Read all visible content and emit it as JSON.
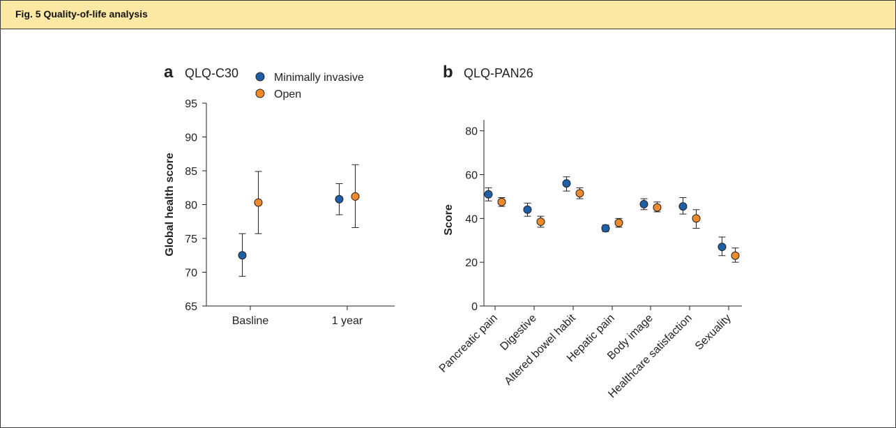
{
  "header": {
    "title": "Fig. 5 Quality-of-life analysis"
  },
  "colors": {
    "minimally_invasive": "#1f5fa8",
    "open": "#ee8a2c",
    "header_bg": "#fde9a3"
  },
  "chart_data": [
    {
      "panel": "a",
      "title": "QLQ-C30",
      "type": "scatter",
      "ylabel": "Global health score",
      "xlabel": "",
      "ylim": [
        65,
        95
      ],
      "yticks": [
        65,
        70,
        75,
        80,
        85,
        90,
        95
      ],
      "categories": [
        "Basline",
        "1 year"
      ],
      "legend_position": "top-right",
      "series": [
        {
          "name": "Minimally invasive",
          "values": [
            72.5,
            80.8
          ],
          "lower": [
            69.4,
            78.5
          ],
          "upper": [
            75.7,
            83.1
          ]
        },
        {
          "name": "Open",
          "values": [
            80.3,
            81.2
          ],
          "lower": [
            75.7,
            76.6
          ],
          "upper": [
            84.9,
            85.9
          ]
        }
      ]
    },
    {
      "panel": "b",
      "title": "QLQ-PAN26",
      "type": "scatter",
      "ylabel": "Score",
      "xlabel": "",
      "ylim": [
        0,
        85
      ],
      "yticks": [
        0,
        20,
        40,
        60,
        80
      ],
      "categories": [
        "Pancreatic pain",
        "Digestive",
        "Altered bowel habit",
        "Hepatic pain",
        "Body image",
        "Healthcare satisfaction",
        "Sexuality"
      ],
      "series": [
        {
          "name": "Minimally invasive",
          "values": [
            51,
            44,
            56,
            35.5,
            46.5,
            45.5,
            27
          ],
          "lower": [
            48,
            41,
            52.5,
            34,
            44,
            42,
            23
          ],
          "upper": [
            54,
            47,
            59,
            37,
            49,
            49.5,
            31.5
          ]
        },
        {
          "name": "Open",
          "values": [
            47.5,
            38.5,
            51.5,
            38,
            45,
            40,
            23
          ],
          "lower": [
            45.5,
            36,
            49,
            36,
            43,
            35.5,
            20
          ],
          "upper": [
            49.5,
            41,
            54,
            40,
            47.5,
            44,
            26.5
          ]
        }
      ]
    }
  ]
}
